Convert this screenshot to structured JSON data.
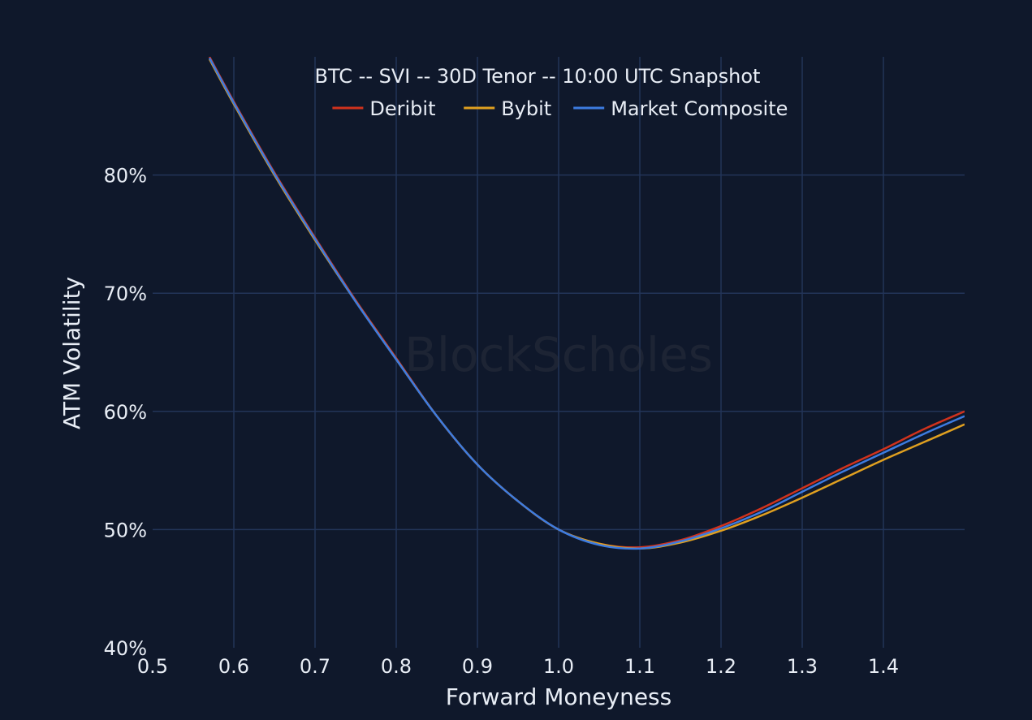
{
  "chart_data": {
    "type": "line",
    "title": "BTC -- SVI -- 30D Tenor -- 10:00 UTC Snapshot",
    "xlabel": "Forward Moneyness",
    "ylabel": "ATM Volatility",
    "xlim": [
      0.5,
      1.5
    ],
    "ylim": [
      40,
      90
    ],
    "x_ticks": [
      0.5,
      0.6,
      0.7,
      0.8,
      0.9,
      1.0,
      1.1,
      1.2,
      1.3,
      1.4
    ],
    "x_tick_labels": [
      "0.5",
      "0.6",
      "0.7",
      "0.8",
      "0.9",
      "1.0",
      "1.1",
      "1.2",
      "1.3",
      "1.4"
    ],
    "y_ticks": [
      40,
      50,
      60,
      70,
      80
    ],
    "y_tick_labels": [
      "40%",
      "50%",
      "60%",
      "70%",
      "80%"
    ],
    "grid": true,
    "legend_position": "top-center",
    "watermark": "BlockScholes",
    "series": [
      {
        "name": "Deribit",
        "color": "#d0321d",
        "x": [
          0.57,
          0.6,
          0.65,
          0.7,
          0.75,
          0.8,
          0.85,
          0.9,
          0.95,
          1.0,
          1.05,
          1.1,
          1.15,
          1.2,
          1.25,
          1.3,
          1.35,
          1.4,
          1.45,
          1.5
        ],
        "y": [
          90.0,
          86.2,
          80.2,
          74.7,
          69.4,
          64.5,
          59.6,
          55.5,
          52.4,
          50.0,
          48.8,
          48.5,
          49.1,
          50.3,
          51.8,
          53.5,
          55.2,
          56.8,
          58.5,
          60.0
        ]
      },
      {
        "name": "Bybit",
        "color": "#e0a020",
        "x": [
          0.57,
          0.6,
          0.65,
          0.7,
          0.75,
          0.8,
          0.85,
          0.9,
          0.95,
          1.0,
          1.05,
          1.1,
          1.15,
          1.2,
          1.25,
          1.3,
          1.35,
          1.4,
          1.45,
          1.5
        ],
        "y": [
          89.8,
          86.0,
          80.0,
          74.5,
          69.3,
          64.4,
          59.6,
          55.5,
          52.4,
          50.0,
          48.8,
          48.4,
          48.9,
          49.9,
          51.2,
          52.7,
          54.3,
          55.9,
          57.4,
          58.9
        ]
      },
      {
        "name": "Market Composite",
        "color": "#3c7be0",
        "x": [
          0.57,
          0.6,
          0.65,
          0.7,
          0.75,
          0.8,
          0.85,
          0.9,
          0.95,
          1.0,
          1.05,
          1.1,
          1.15,
          1.2,
          1.25,
          1.3,
          1.35,
          1.4,
          1.45,
          1.5
        ],
        "y": [
          89.9,
          86.1,
          80.1,
          74.6,
          69.3,
          64.4,
          59.6,
          55.5,
          52.4,
          50.0,
          48.7,
          48.4,
          49.0,
          50.1,
          51.5,
          53.2,
          54.9,
          56.5,
          58.1,
          59.6
        ]
      }
    ]
  }
}
